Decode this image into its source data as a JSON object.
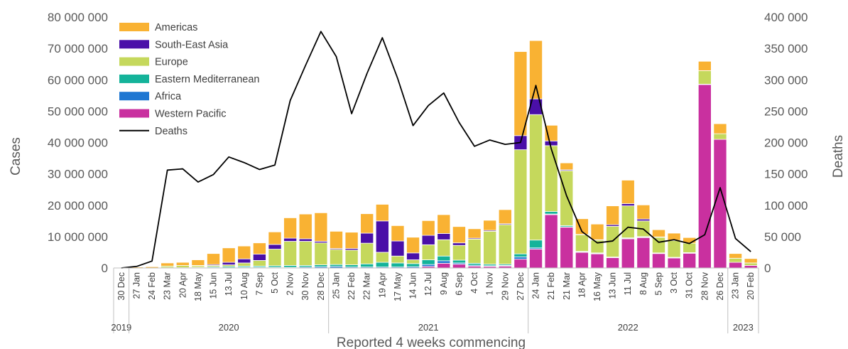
{
  "chart_data": {
    "type": "bar",
    "stacked": true,
    "xlabel": "Reported 4 weeks commencing",
    "ylabel": "Cases",
    "ylabel_right": "Deaths",
    "ylim": [
      0,
      80000000
    ],
    "ylim_right": [
      0,
      400000
    ],
    "yticks": [
      "0",
      "10 000 000",
      "20 000 000",
      "30 000 000",
      "40 000 000",
      "50 000 000",
      "60 000 000",
      "70 000 000",
      "80 000 000"
    ],
    "yticks_right": [
      "0",
      "50 000",
      "100 000",
      "150 000",
      "200 000",
      "250 000",
      "300 000",
      "350 000",
      "400 000"
    ],
    "categories": [
      "30 Dec",
      "27 Jan",
      "24 Feb",
      "23 Mar",
      "20 Apr",
      "18 May",
      "15 Jun",
      "13 Jul",
      "10 Aug",
      "7 Sep",
      "5 Oct",
      "2 Nov",
      "30 Nov",
      "28 Dec",
      "25 Jan",
      "22 Feb",
      "22 Mar",
      "19 Apr",
      "17 May",
      "14 Jun",
      "12 Jul",
      "9 Aug",
      "6 Sep",
      "4 Oct",
      "1 Nov",
      "29 Nov",
      "27 Dec",
      "24 Jan",
      "21 Feb",
      "21 Mar",
      "18 Apr",
      "16 May",
      "13 Jun",
      "11 Jul",
      "8 Aug",
      "5 Sep",
      "3 Oct",
      "31 Oct",
      "28 Nov",
      "26 Dec",
      "23 Jan",
      "20 Feb"
    ],
    "years": [
      {
        "label": "2019",
        "start": 0,
        "end": 0
      },
      {
        "label": "2020",
        "start": 1,
        "end": 13
      },
      {
        "label": "2021",
        "start": 14,
        "end": 26
      },
      {
        "label": "2022",
        "start": 27,
        "end": 39
      },
      {
        "label": "2023",
        "start": 40,
        "end": 41
      }
    ],
    "series": [
      {
        "name": "Western Pacific",
        "color": "#c9309f",
        "values": [
          0,
          0,
          0,
          0,
          0,
          0,
          0,
          0,
          0,
          0,
          0,
          0,
          0,
          0,
          0,
          0,
          0,
          0,
          0,
          0,
          0.5,
          1.5,
          1.2,
          0.6,
          0.5,
          0.6,
          2.8,
          6.0,
          17.0,
          13.0,
          5.0,
          4.5,
          3.3,
          9.3,
          9.7,
          4.6,
          3.2,
          4.7,
          58.5,
          41.0,
          1.8,
          0.8
        ]
      },
      {
        "name": "Africa",
        "color": "#1f77d2",
        "values": [
          0,
          0,
          0,
          0,
          0,
          0,
          0.1,
          0.1,
          0.2,
          0.2,
          0.2,
          0.2,
          0.3,
          0.4,
          0.5,
          0.3,
          0.3,
          0.3,
          0.3,
          0.4,
          0.6,
          0.8,
          0.4,
          0.3,
          0.2,
          0.2,
          0.7,
          0.4,
          0.2,
          0.1,
          0.1,
          0.1,
          0.1,
          0.1,
          0.1,
          0.1,
          0.1,
          0.1,
          0,
          0,
          0,
          0
        ]
      },
      {
        "name": "Eastern Mediterranean",
        "color": "#14b39a",
        "values": [
          0,
          0,
          0,
          0.1,
          0.1,
          0.2,
          0.3,
          0.4,
          0.4,
          0.4,
          0.5,
          0.6,
          0.5,
          0.6,
          0.6,
          0.7,
          1.0,
          1.5,
          1.3,
          1.0,
          1.5,
          1.5,
          0.9,
          0.6,
          0.5,
          0.4,
          1.0,
          2.5,
          0.8,
          0.4,
          0.2,
          0.2,
          0.1,
          0.2,
          0.2,
          0.1,
          0.1,
          0.1,
          0.1,
          0,
          0,
          0
        ]
      },
      {
        "name": "Europe",
        "color": "#c5d85c",
        "values": [
          0,
          0,
          0,
          0.5,
          0.7,
          0.5,
          0.4,
          0.5,
          1.0,
          1.8,
          5.3,
          7.7,
          7.7,
          7.0,
          4.8,
          4.7,
          6.6,
          3.2,
          2.2,
          1.2,
          4.8,
          5.2,
          4.7,
          7.7,
          10.5,
          12.6,
          33.2,
          40.0,
          21.0,
          17.5,
          5.3,
          4.1,
          9.8,
          10.2,
          5.0,
          5.0,
          5.3,
          3.0,
          4.3,
          1.8,
          1.3,
          0.8
        ]
      },
      {
        "name": "South-East Asia",
        "color": "#4a0fa8",
        "values": [
          0,
          0,
          0,
          0,
          0,
          0.1,
          0.3,
          0.8,
          1.3,
          2.0,
          1.5,
          1.0,
          0.8,
          0.5,
          0.3,
          0.5,
          3.2,
          10.0,
          4.8,
          2.2,
          3.0,
          2.0,
          0.8,
          0.3,
          0.3,
          0.3,
          4.5,
          5.0,
          1.5,
          0.3,
          0.1,
          0.1,
          0.5,
          0.7,
          0.6,
          0.1,
          0.1,
          0,
          0,
          0,
          0,
          0
        ]
      },
      {
        "name": "Americas",
        "color": "#f9b233",
        "values": [
          0,
          0.3,
          0.4,
          1.0,
          1.0,
          1.8,
          3.5,
          4.6,
          4.1,
          3.6,
          4.0,
          6.5,
          7.9,
          9.1,
          5.5,
          5.2,
          6.2,
          5.3,
          4.9,
          5.0,
          4.7,
          6.0,
          5.2,
          3.0,
          3.2,
          4.5,
          26.8,
          18.6,
          5.0,
          2.2,
          5.0,
          5.0,
          6.0,
          7.5,
          4.5,
          2.3,
          2.3,
          1.8,
          3.0,
          3.2,
          1.5,
          1.4
        ]
      }
    ],
    "unit_scale": 1000000,
    "deaths": {
      "name": "Deaths",
      "color": "#000000",
      "values": [
        0,
        2500,
        11000,
        156000,
        158000,
        137000,
        149000,
        177000,
        168000,
        157000,
        164000,
        267000,
        323000,
        377000,
        337000,
        246000,
        310000,
        367000,
        302000,
        227000,
        259000,
        279000,
        232000,
        194000,
        204000,
        197000,
        200000,
        291000,
        190000,
        115000,
        58000,
        40000,
        43000,
        65000,
        62000,
        41000,
        45000,
        39000,
        53000,
        128000,
        47000,
        26000
      ]
    },
    "legend": {
      "placement": "top-left",
      "order": [
        "Americas",
        "South-East Asia",
        "Europe",
        "Eastern Mediterranean",
        "Africa",
        "Western Pacific",
        "Deaths"
      ]
    }
  }
}
